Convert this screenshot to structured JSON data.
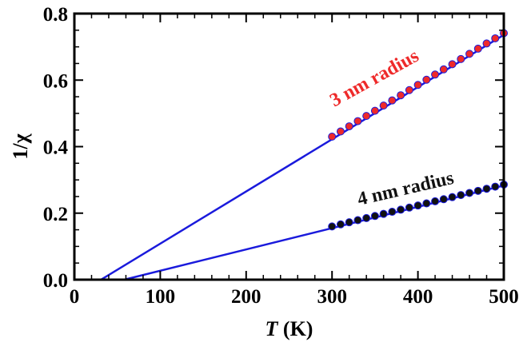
{
  "chart_data": {
    "type": "line",
    "title": "",
    "xlabel": {
      "italic": "T",
      "rest": " (K)"
    },
    "ylabel": "1/χ",
    "xlim": [
      0,
      500
    ],
    "ylim": [
      0,
      0.8
    ],
    "xticks": [
      0,
      100,
      200,
      300,
      400,
      500
    ],
    "xtick_labels": [
      "0",
      "100",
      "200",
      "300",
      "400",
      "500"
    ],
    "yticks": [
      0.0,
      0.2,
      0.4,
      0.6,
      0.8
    ],
    "ytick_labels": [
      "0.0",
      "0.2",
      "0.4",
      "0.6",
      "0.8"
    ],
    "grid": false,
    "colors": {
      "fit_line": "#1a1adc",
      "red_series": "#ee2a2a",
      "black_series": "#111111",
      "axis": "#000000"
    },
    "series": [
      {
        "name": "3 nm radius",
        "label_color": "#ee2a2a",
        "fit": {
          "x": [
            31,
            500
          ],
          "y": [
            0.0,
            0.736
          ]
        },
        "points": {
          "x": [
            300,
            310,
            320,
            330,
            340,
            350,
            360,
            370,
            380,
            390,
            400,
            410,
            420,
            430,
            440,
            450,
            460,
            470,
            480,
            490,
            500
          ],
          "y": [
            0.43,
            0.4456,
            0.4611,
            0.4767,
            0.4922,
            0.5078,
            0.5234,
            0.5389,
            0.5545,
            0.57,
            0.5856,
            0.6012,
            0.6167,
            0.6323,
            0.6478,
            0.6634,
            0.679,
            0.6945,
            0.7101,
            0.7256,
            0.7412
          ]
        }
      },
      {
        "name": "4 nm radius",
        "label_color": "#111111",
        "fit": {
          "x": [
            58,
            500
          ],
          "y": [
            0.0,
            0.283
          ]
        },
        "points": {
          "x": [
            300,
            310,
            320,
            330,
            340,
            350,
            360,
            370,
            380,
            390,
            400,
            410,
            420,
            430,
            440,
            450,
            460,
            470,
            480,
            490,
            500
          ],
          "y": [
            0.16,
            0.1663,
            0.1726,
            0.1789,
            0.1852,
            0.1915,
            0.1978,
            0.2041,
            0.2104,
            0.2167,
            0.223,
            0.2293,
            0.2356,
            0.2419,
            0.2482,
            0.2545,
            0.2608,
            0.2671,
            0.2734,
            0.2797,
            0.286
          ]
        }
      }
    ]
  }
}
